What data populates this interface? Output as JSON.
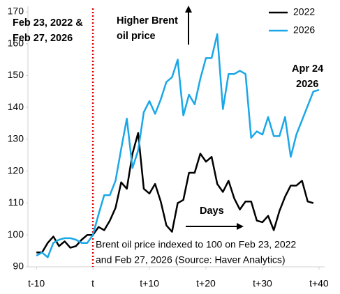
{
  "chart_data": {
    "type": "line",
    "x": [
      -10,
      -9,
      -8,
      -7,
      -6,
      -5,
      -4,
      -3,
      -2,
      -1,
      0,
      1,
      2,
      3,
      4,
      5,
      6,
      7,
      8,
      9,
      10,
      11,
      12,
      13,
      14,
      15,
      16,
      17,
      18,
      19,
      20,
      21,
      22,
      23,
      24,
      25,
      26,
      27,
      28,
      29,
      30,
      31,
      32,
      33,
      34,
      35,
      36,
      37,
      38,
      39,
      40
    ],
    "series": [
      {
        "name": "2022",
        "color": "#000000",
        "values": [
          94.5,
          94.5,
          97.5,
          99.5,
          96.5,
          98,
          96,
          96.5,
          98.5,
          100,
          100,
          102.5,
          101.5,
          104.5,
          108.5,
          116.5,
          114.5,
          125.5,
          132,
          114.5,
          113,
          116,
          110.5,
          103,
          101,
          110,
          111,
          119.5,
          119.5,
          125.5,
          123,
          124.5,
          116,
          113.5,
          117,
          111.5,
          108,
          110.5,
          110.5,
          104.5,
          104,
          106,
          101.5,
          107.5,
          112,
          115.5,
          115.5,
          117,
          110.5,
          110,
          null
        ]
      },
      {
        "name": "2026",
        "color": "#1aa7e8",
        "values": [
          93.5,
          94.5,
          93,
          97.5,
          98.5,
          99,
          99,
          98.5,
          97.5,
          97.5,
          100,
          106.5,
          112.5,
          112.5,
          117,
          127,
          136.5,
          121,
          126.5,
          138.5,
          142,
          138,
          142.5,
          148,
          149.5,
          155,
          137.5,
          144,
          141,
          149,
          155.5,
          155.5,
          163,
          139.5,
          150.5,
          150.5,
          151.5,
          150.5,
          130.5,
          132.5,
          131.5,
          137,
          131,
          131,
          137,
          124.5,
          131.5,
          136,
          140.5,
          145,
          145.5
        ]
      }
    ],
    "xlim": [
      -11.5,
      41
    ],
    "xticks": [
      {
        "value": -10,
        "label": "t-10"
      },
      {
        "value": 0,
        "label": "t"
      },
      {
        "value": 10,
        "label": "t+10"
      },
      {
        "value": 20,
        "label": "t+20"
      },
      {
        "value": 30,
        "label": "t+30"
      },
      {
        "value": 40,
        "label": "t+40"
      }
    ],
    "ylim": [
      90,
      170
    ],
    "yticks": [
      90,
      100,
      110,
      120,
      130,
      140,
      150,
      160,
      170
    ],
    "event_line": {
      "x": 0,
      "color": "#e00000"
    },
    "annotations": [
      {
        "lines": [
          "Feb 23, 2022 &",
          "Feb 27, 2026"
        ],
        "color": "#e00000"
      },
      {
        "lines": [
          "Higher Brent",
          "oil price"
        ],
        "color": "#000000"
      },
      {
        "lines": [
          "Days"
        ],
        "color": "#000000"
      },
      {
        "lines": [
          "Apr 24",
          "2026"
        ],
        "color": "#1aa7e8"
      },
      {
        "lines": [
          "Brent oil price indexed to 100 on Feb 23, 2022",
          "and Feb 27, 2026 (Source: Haver Analytics)"
        ],
        "color": "#000000"
      }
    ],
    "legend": "upper right"
  }
}
